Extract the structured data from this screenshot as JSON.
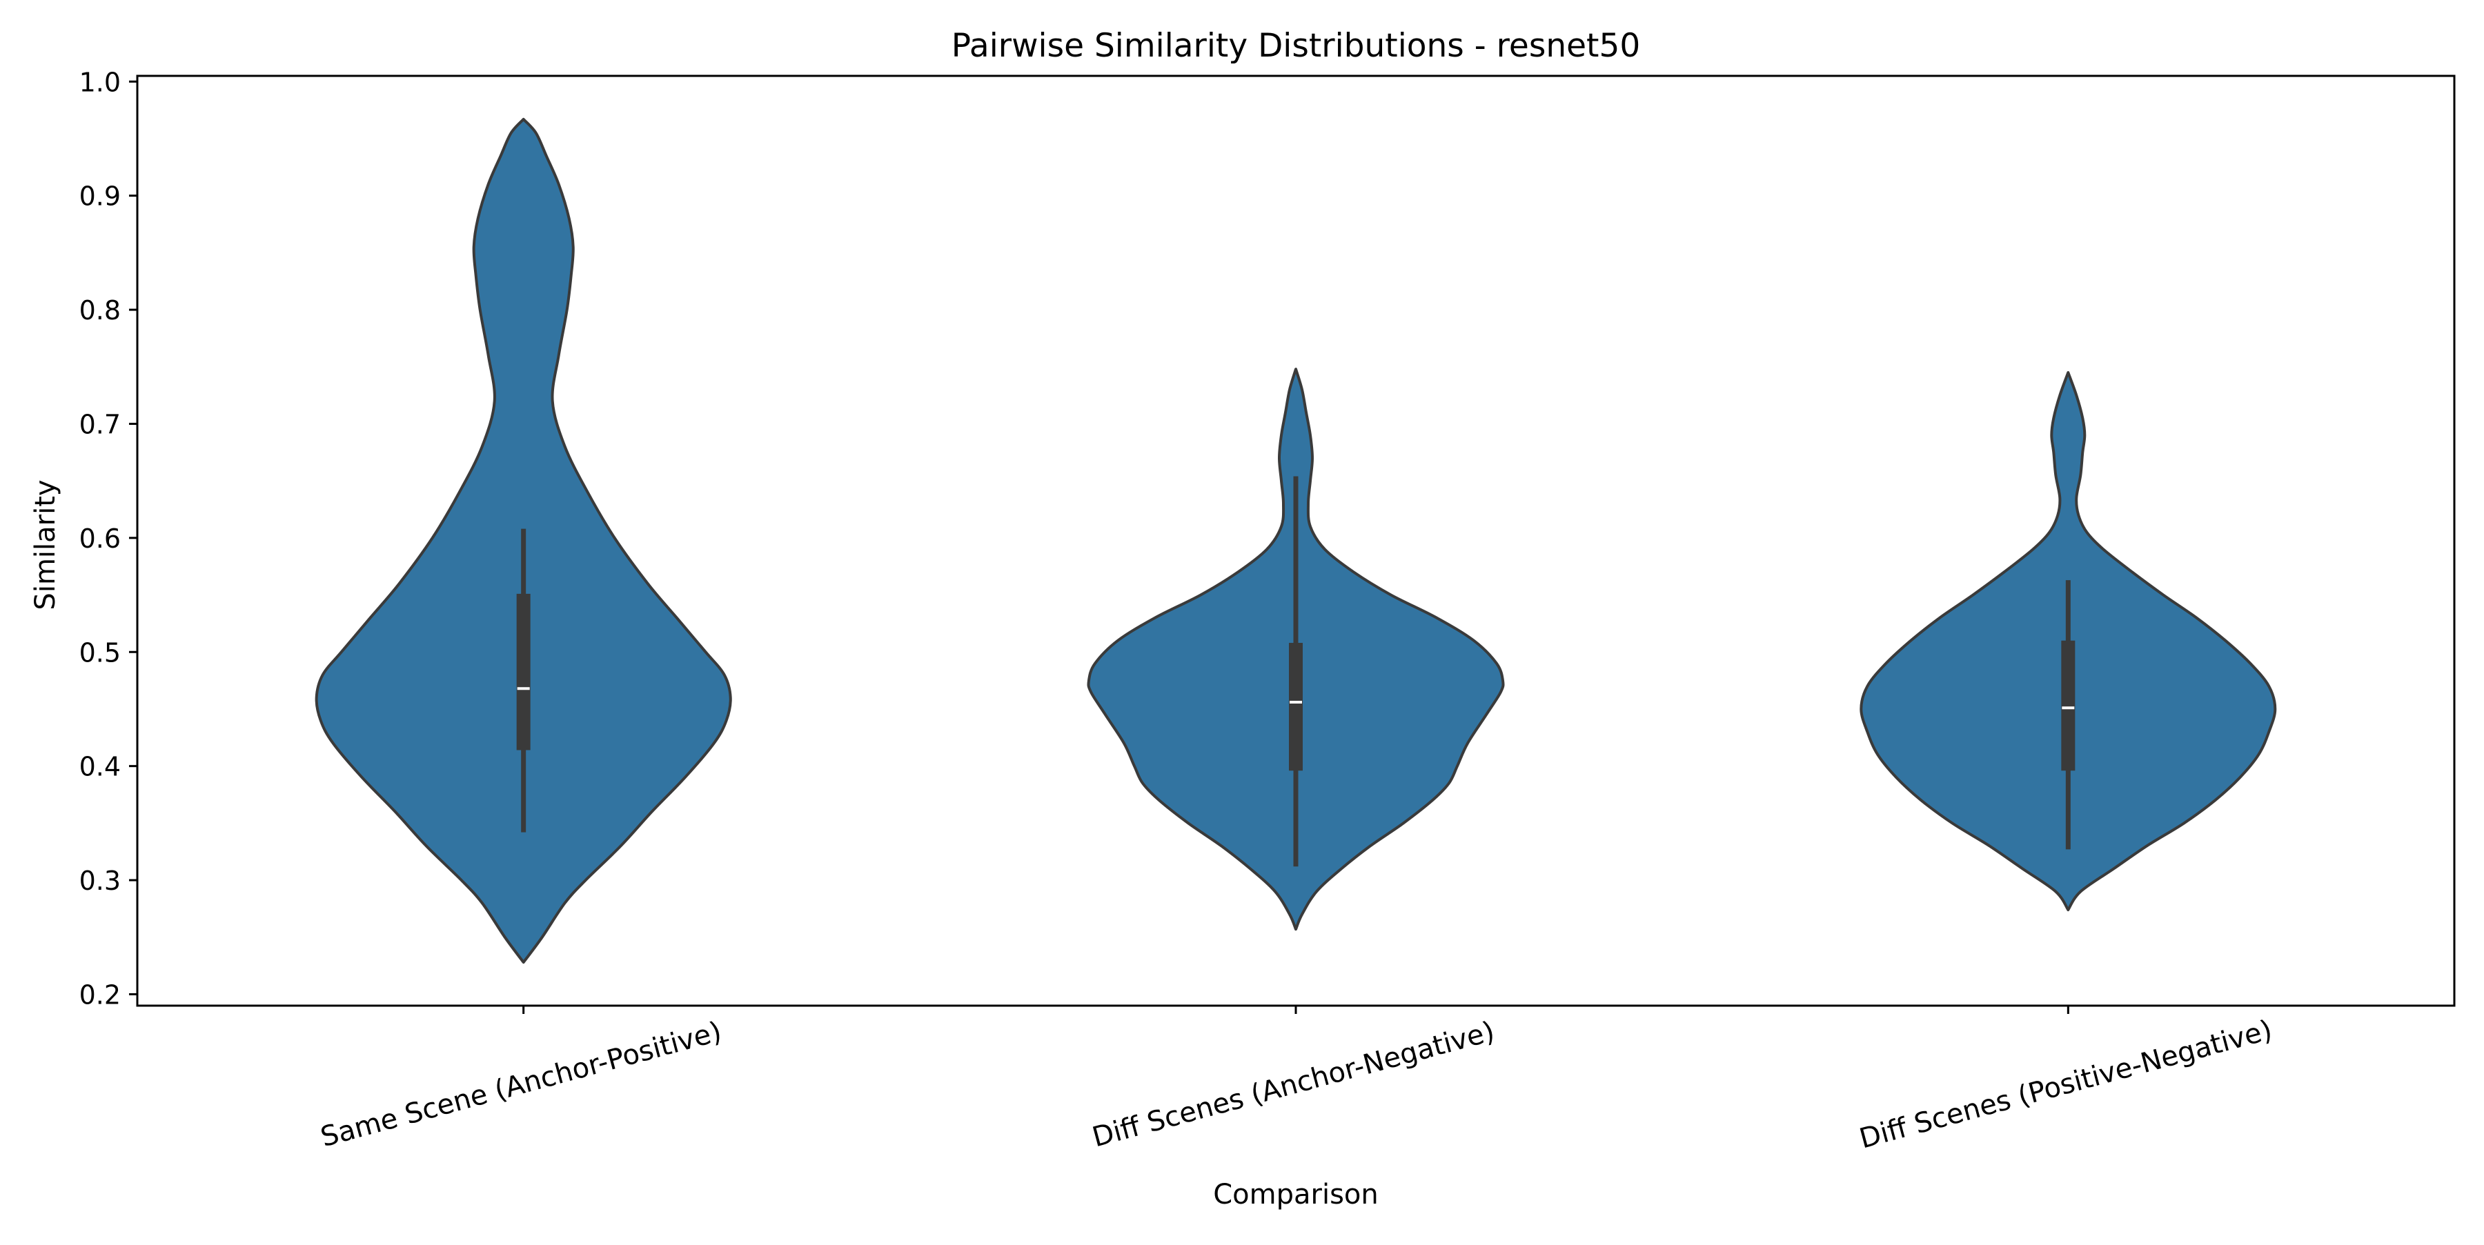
{
  "chart_data": {
    "type": "violin",
    "title": "Pairwise Similarity Distributions - resnet50",
    "xlabel": "Comparison",
    "ylabel": "Similarity",
    "ylim": [
      0.19,
      1.005
    ],
    "yticks": [
      0.2,
      0.3,
      0.4,
      0.5,
      0.6,
      0.7,
      0.8,
      0.9,
      1.0
    ],
    "ytick_labels": [
      "0.2",
      "0.3",
      "0.4",
      "0.5",
      "0.6",
      "0.7",
      "0.8",
      "0.9",
      "1.0"
    ],
    "categories": [
      "Same Scene (Anchor-Positive)",
      "Diff Scenes (Anchor-Negative)",
      "Diff Scenes (Positive-Negative)"
    ],
    "grid": false,
    "legend": "none",
    "color": "#3274a1",
    "violins": [
      {
        "category": "Same Scene (Anchor-Positive)",
        "min": 0.228,
        "max": 0.967,
        "whisker_low": 0.342,
        "whisker_high": 0.608,
        "q1": 0.414,
        "median": 0.468,
        "q3": 0.551,
        "density": [
          [
            0.228,
            0.0
          ],
          [
            0.25,
            0.09
          ],
          [
            0.28,
            0.2
          ],
          [
            0.3,
            0.3
          ],
          [
            0.33,
            0.47
          ],
          [
            0.36,
            0.62
          ],
          [
            0.39,
            0.78
          ],
          [
            0.42,
            0.92
          ],
          [
            0.44,
            0.98
          ],
          [
            0.46,
            1.0
          ],
          [
            0.48,
            0.97
          ],
          [
            0.5,
            0.88
          ],
          [
            0.53,
            0.74
          ],
          [
            0.56,
            0.6
          ],
          [
            0.6,
            0.44
          ],
          [
            0.64,
            0.31
          ],
          [
            0.68,
            0.2
          ],
          [
            0.72,
            0.14
          ],
          [
            0.76,
            0.17
          ],
          [
            0.8,
            0.21
          ],
          [
            0.83,
            0.23
          ],
          [
            0.855,
            0.24
          ],
          [
            0.88,
            0.22
          ],
          [
            0.91,
            0.17
          ],
          [
            0.935,
            0.11
          ],
          [
            0.955,
            0.06
          ],
          [
            0.967,
            0.0
          ]
        ]
      },
      {
        "category": "Diff Scenes (Anchor-Negative)",
        "min": 0.257,
        "max": 0.748,
        "whisker_low": 0.312,
        "whisker_high": 0.654,
        "q1": 0.396,
        "median": 0.456,
        "q3": 0.508,
        "density": [
          [
            0.257,
            0.0
          ],
          [
            0.27,
            0.03
          ],
          [
            0.29,
            0.1
          ],
          [
            0.31,
            0.22
          ],
          [
            0.33,
            0.36
          ],
          [
            0.35,
            0.52
          ],
          [
            0.37,
            0.66
          ],
          [
            0.385,
            0.74
          ],
          [
            0.4,
            0.78
          ],
          [
            0.42,
            0.83
          ],
          [
            0.445,
            0.92
          ],
          [
            0.465,
            0.99
          ],
          [
            0.475,
            1.0
          ],
          [
            0.49,
            0.97
          ],
          [
            0.51,
            0.86
          ],
          [
            0.53,
            0.68
          ],
          [
            0.55,
            0.46
          ],
          [
            0.57,
            0.28
          ],
          [
            0.59,
            0.14
          ],
          [
            0.61,
            0.07
          ],
          [
            0.63,
            0.06
          ],
          [
            0.65,
            0.07
          ],
          [
            0.67,
            0.08
          ],
          [
            0.69,
            0.07
          ],
          [
            0.71,
            0.05
          ],
          [
            0.73,
            0.03
          ],
          [
            0.748,
            0.0
          ]
        ]
      },
      {
        "category": "Diff Scenes (Positive-Negative)",
        "min": 0.274,
        "max": 0.745,
        "whisker_low": 0.327,
        "whisker_high": 0.563,
        "q1": 0.396,
        "median": 0.451,
        "q3": 0.51,
        "density": [
          [
            0.274,
            0.0
          ],
          [
            0.29,
            0.06
          ],
          [
            0.31,
            0.22
          ],
          [
            0.33,
            0.38
          ],
          [
            0.35,
            0.56
          ],
          [
            0.37,
            0.71
          ],
          [
            0.39,
            0.83
          ],
          [
            0.41,
            0.92
          ],
          [
            0.43,
            0.97
          ],
          [
            0.45,
            1.0
          ],
          [
            0.47,
            0.97
          ],
          [
            0.49,
            0.88
          ],
          [
            0.51,
            0.76
          ],
          [
            0.53,
            0.62
          ],
          [
            0.55,
            0.46
          ],
          [
            0.57,
            0.31
          ],
          [
            0.59,
            0.17
          ],
          [
            0.605,
            0.09
          ],
          [
            0.62,
            0.05
          ],
          [
            0.635,
            0.04
          ],
          [
            0.655,
            0.06
          ],
          [
            0.675,
            0.07
          ],
          [
            0.69,
            0.08
          ],
          [
            0.705,
            0.07
          ],
          [
            0.725,
            0.04
          ],
          [
            0.745,
            0.0
          ]
        ]
      }
    ]
  }
}
